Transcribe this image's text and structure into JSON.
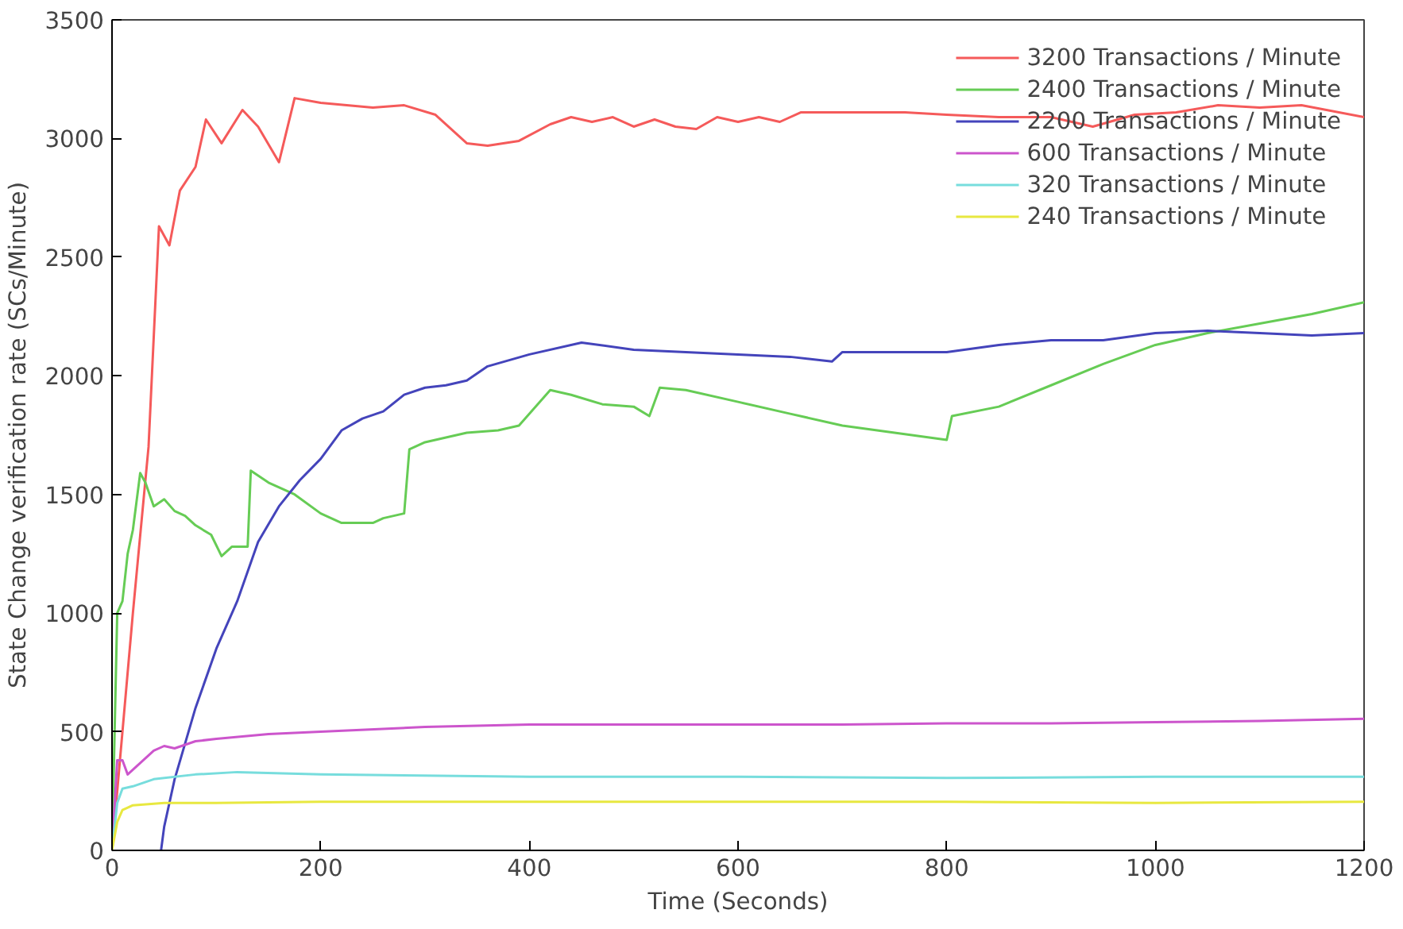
{
  "chart_data": {
    "type": "line",
    "xlabel": "Time (Seconds)",
    "ylabel": "State Change verification rate (SCs/Minute)",
    "xlim": [
      0,
      1200
    ],
    "ylim": [
      0,
      3500
    ],
    "xticks": [
      0,
      200,
      400,
      600,
      800,
      1000,
      1200
    ],
    "yticks": [
      0,
      500,
      1000,
      1500,
      2000,
      2500,
      3000,
      3500
    ],
    "grid": false,
    "legend": "top right",
    "line_style": "solid",
    "marker": "none",
    "series": [
      {
        "name": "3200 Transactions / Minute",
        "color": "#f55a5a",
        "x": [
          0,
          20,
          35,
          45,
          55,
          65,
          80,
          90,
          105,
          125,
          140,
          160,
          175,
          200,
          250,
          280,
          310,
          340,
          360,
          390,
          420,
          440,
          460,
          480,
          500,
          520,
          540,
          560,
          580,
          600,
          620,
          640,
          660,
          700,
          760,
          800,
          850,
          900,
          940,
          980,
          1020,
          1060,
          1100,
          1140,
          1200
        ],
        "values": [
          0,
          1000,
          1700,
          2630,
          2550,
          2780,
          2880,
          3080,
          2980,
          3120,
          3050,
          2900,
          3170,
          3150,
          3130,
          3140,
          3100,
          2980,
          2970,
          2990,
          3060,
          3090,
          3070,
          3090,
          3050,
          3080,
          3050,
          3040,
          3090,
          3070,
          3090,
          3070,
          3110,
          3110,
          3110,
          3100,
          3090,
          3090,
          3050,
          3100,
          3110,
          3140,
          3130,
          3140,
          3090
        ]
      },
      {
        "name": "2400 Transactions / Minute",
        "color": "#66cc55",
        "x": [
          0,
          5,
          10,
          15,
          20,
          27,
          32,
          40,
          50,
          60,
          70,
          80,
          95,
          105,
          115,
          130,
          133,
          150,
          175,
          200,
          220,
          250,
          260,
          280,
          285,
          300,
          320,
          340,
          370,
          390,
          420,
          440,
          470,
          500,
          515,
          525,
          550,
          600,
          650,
          700,
          750,
          800,
          805,
          850,
          900,
          950,
          1000,
          1050,
          1100,
          1150,
          1200
        ],
        "values": [
          0,
          1000,
          1050,
          1250,
          1350,
          1590,
          1550,
          1450,
          1480,
          1430,
          1410,
          1370,
          1330,
          1240,
          1280,
          1280,
          1600,
          1550,
          1500,
          1420,
          1380,
          1380,
          1400,
          1420,
          1690,
          1720,
          1740,
          1760,
          1770,
          1790,
          1940,
          1920,
          1880,
          1870,
          1830,
          1950,
          1940,
          1890,
          1840,
          1790,
          1760,
          1730,
          1830,
          1870,
          1960,
          2050,
          2130,
          2180,
          2220,
          2260,
          2310
        ]
      },
      {
        "name": "2200 Transactions / Minute",
        "color": "#4444bb",
        "x": [
          47,
          50,
          60,
          80,
          100,
          120,
          140,
          160,
          180,
          200,
          220,
          240,
          260,
          280,
          300,
          320,
          340,
          360,
          400,
          450,
          500,
          550,
          600,
          650,
          690,
          700,
          750,
          800,
          850,
          900,
          950,
          1000,
          1050,
          1100,
          1150,
          1200
        ],
        "values": [
          0,
          100,
          300,
          600,
          850,
          1050,
          1300,
          1450,
          1560,
          1650,
          1770,
          1820,
          1850,
          1920,
          1950,
          1960,
          1980,
          2040,
          2090,
          2140,
          2110,
          2100,
          2090,
          2080,
          2060,
          2100,
          2100,
          2100,
          2130,
          2150,
          2150,
          2180,
          2190,
          2180,
          2170,
          2180
        ]
      },
      {
        "name": "600 Transactions / Minute",
        "color": "#cc55cc",
        "x": [
          0,
          5,
          10,
          15,
          25,
          40,
          50,
          60,
          80,
          100,
          150,
          200,
          300,
          400,
          500,
          600,
          700,
          800,
          900,
          1000,
          1100,
          1200
        ],
        "values": [
          0,
          380,
          380,
          320,
          360,
          420,
          440,
          430,
          460,
          470,
          490,
          500,
          520,
          530,
          530,
          530,
          530,
          535,
          535,
          540,
          545,
          555
        ]
      },
      {
        "name": "320 Transactions / Minute",
        "color": "#77dddd",
        "x": [
          0,
          5,
          10,
          20,
          40,
          80,
          120,
          200,
          400,
          600,
          800,
          1000,
          1200
        ],
        "values": [
          0,
          200,
          260,
          270,
          300,
          320,
          330,
          320,
          310,
          310,
          305,
          310,
          310
        ]
      },
      {
        "name": "240 Transactions / Minute",
        "color": "#e8e840",
        "x": [
          0,
          5,
          10,
          20,
          50,
          100,
          200,
          400,
          800,
          1000,
          1200
        ],
        "values": [
          0,
          120,
          170,
          190,
          200,
          200,
          205,
          205,
          205,
          200,
          205
        ]
      }
    ]
  }
}
